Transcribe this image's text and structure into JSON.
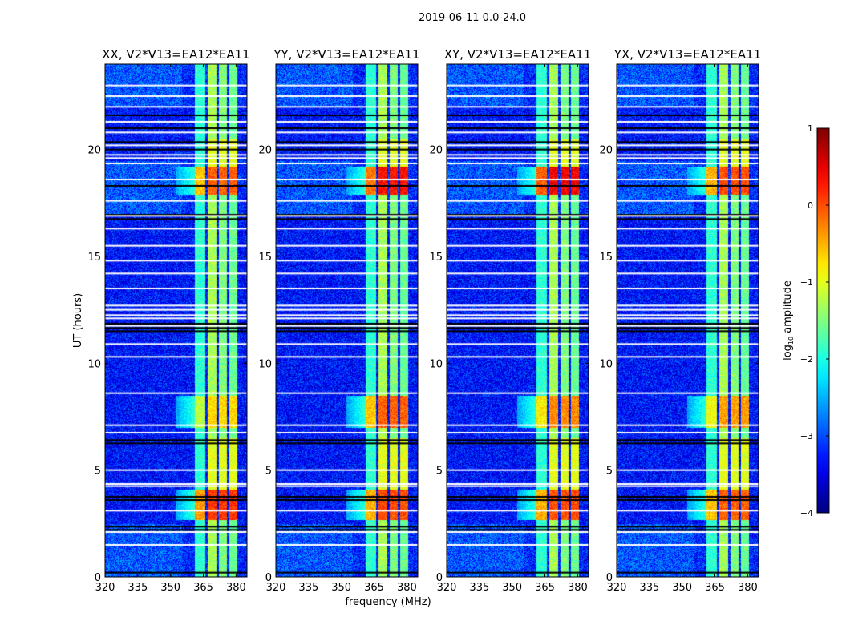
{
  "chart_data": {
    "type": "heatmap",
    "title": "2019-06-11 0.0-24.0",
    "xlabel": "frequency (MHz)",
    "ylabel": "UT (hours)",
    "xlim": [
      320,
      385
    ],
    "ylim": [
      0,
      24
    ],
    "xticks": [
      320,
      335,
      350,
      365,
      380
    ],
    "yticks": [
      0,
      5,
      10,
      15,
      20
    ],
    "colorbar": {
      "label": "log10 amplitude",
      "label_base": "log",
      "label_sub": "10",
      "label_rest": " amplitude",
      "range": [
        -4,
        1
      ],
      "ticks": [
        -4,
        -3,
        -2,
        -1,
        0,
        1
      ],
      "tick_labels": [
        "−4",
        "−3",
        "−2",
        "−1",
        "0",
        "1"
      ],
      "colormap": "jet"
    },
    "panels": [
      {
        "title": "XX, V2*V13=EA12*EA11",
        "event_levels": [
          0.1,
          -0.7,
          -0.1
        ]
      },
      {
        "title": "YY, V2*V13=EA12*EA11",
        "event_levels": [
          0.0,
          -0.1,
          0.3
        ]
      },
      {
        "title": "XY, V2*V13=EA12*EA11",
        "event_levels": [
          0.0,
          -0.3,
          0.4
        ]
      },
      {
        "title": "YX, V2*V13=EA12*EA11",
        "event_levels": [
          -0.1,
          -0.4,
          0.0
        ]
      }
    ],
    "background_level": -3.3,
    "band_segments_mhz": [
      [
        361,
        365.8,
        -1.9
      ],
      [
        366.9,
        371,
        -1.3
      ],
      [
        372,
        375.7,
        -1.5
      ],
      [
        376.8,
        380.4,
        -1.6
      ]
    ],
    "events_hours": [
      [
        2.7,
        4.1
      ],
      [
        7.0,
        8.5
      ],
      [
        17.9,
        19.2
      ]
    ],
    "flagged_hours": [
      1.5,
      2.1,
      3.1,
      4.25,
      4.35,
      5.0,
      6.75,
      7.1,
      8.6,
      10.3,
      10.9,
      11.75,
      12.1,
      12.25,
      12.5,
      12.7,
      13.5,
      14.2,
      14.8,
      15.5,
      16.3,
      16.9,
      17.6,
      18.6,
      19.35,
      19.6,
      19.75,
      20.2,
      20.8,
      21.3,
      22.0,
      22.5,
      23.0
    ],
    "zero_hours": [
      0.2,
      2.2,
      2.35,
      3.6,
      3.75,
      6.25,
      6.4,
      11.5,
      11.65,
      11.85,
      16.75,
      16.95,
      18.3,
      20.0,
      20.35,
      21.0,
      21.6
    ]
  }
}
